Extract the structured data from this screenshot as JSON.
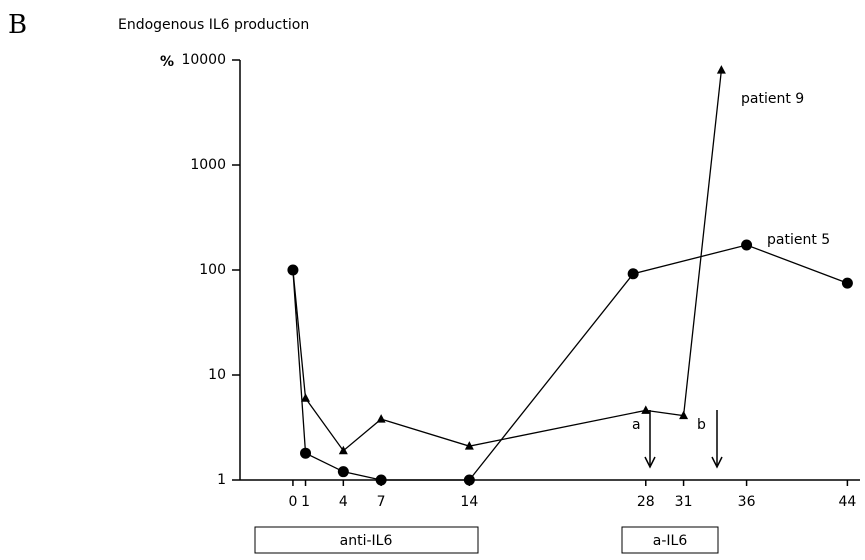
{
  "panel_label": "B",
  "chart_data": {
    "type": "line",
    "title": "Endogenous IL6 production",
    "y_label": "%",
    "log_y": true,
    "xlim": [
      -4.2,
      45
    ],
    "ylim": [
      1,
      10000
    ],
    "xticks": [
      0,
      1,
      4,
      7,
      14,
      28,
      31,
      36,
      44
    ],
    "yticks": [
      1,
      10,
      100,
      1000,
      10000
    ],
    "series": [
      {
        "name": "patient 5",
        "color": "#000000",
        "marker": "circle",
        "x": [
          0,
          1,
          4,
          7,
          14,
          27,
          36,
          44
        ],
        "values": [
          100,
          1.8,
          1.2,
          1,
          1,
          92,
          173,
          75
        ]
      },
      {
        "name": "patient 9",
        "color": "#000000",
        "marker": "triangle",
        "x": [
          0,
          1,
          4,
          7,
          14,
          28,
          31,
          34
        ],
        "values": [
          100,
          6,
          1.9,
          3.8,
          2.1,
          4.6,
          4.1,
          8000
        ]
      }
    ],
    "annotations": [
      "a",
      "b",
      "anti-IL6",
      "a-IL6"
    ]
  }
}
